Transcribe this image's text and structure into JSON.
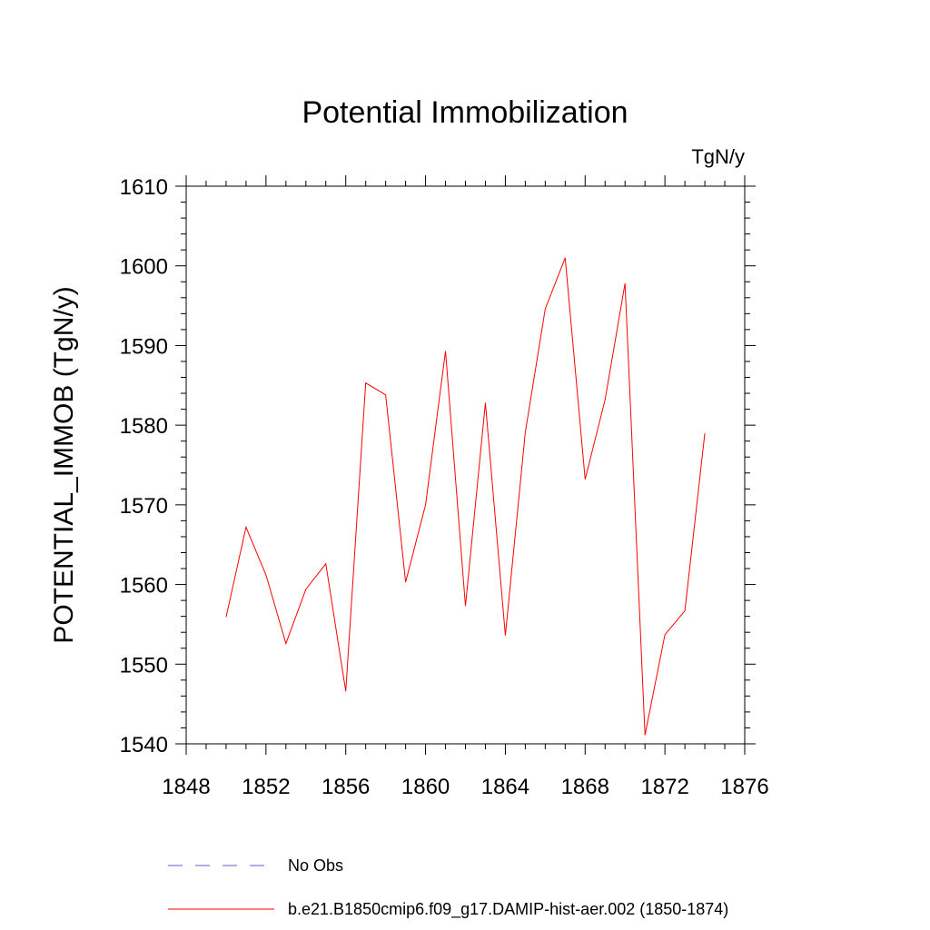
{
  "chart_data": {
    "type": "line",
    "title": "Potential Immobilization",
    "units": "TgN/y",
    "ylabel": "POTENTIAL_IMMOB  (TgN/y)",
    "xlabel": "",
    "xlim": [
      1848,
      1876
    ],
    "ylim": [
      1540,
      1610
    ],
    "xticks": [
      1848,
      1852,
      1856,
      1860,
      1864,
      1868,
      1872,
      1876
    ],
    "yticks": [
      1540,
      1550,
      1560,
      1570,
      1580,
      1590,
      1600,
      1610
    ],
    "x": [
      1850,
      1851,
      1852,
      1853,
      1854,
      1855,
      1856,
      1857,
      1858,
      1859,
      1860,
      1861,
      1862,
      1863,
      1864,
      1865,
      1866,
      1867,
      1868,
      1869,
      1870,
      1871,
      1872,
      1873,
      1874
    ],
    "series": [
      {
        "name": "b.e21.B1850cmip6.f09_g17.DAMIP-hist-aer.002 (1850-1874)",
        "color": "#ff0000",
        "values": [
          1555.9,
          1567.2,
          1561.2,
          1552.6,
          1559.4,
          1562.6,
          1546.6,
          1585.3,
          1583.8,
          1560.3,
          1570.0,
          1589.3,
          1557.3,
          1582.8,
          1553.6,
          1579.1,
          1594.6,
          1601.0,
          1573.2,
          1583.2,
          1597.8,
          1541.1,
          1553.7,
          1556.7,
          1579.0
        ]
      }
    ],
    "legend": [
      {
        "label": "No Obs",
        "color": "#6a5acd",
        "style": "dashed"
      },
      {
        "label": "b.e21.B1850cmip6.f09_g17.DAMIP-hist-aer.002 (1850-1874)",
        "color": "#ff0000",
        "style": "solid"
      }
    ],
    "grid": false,
    "legend_position": "bottom"
  }
}
